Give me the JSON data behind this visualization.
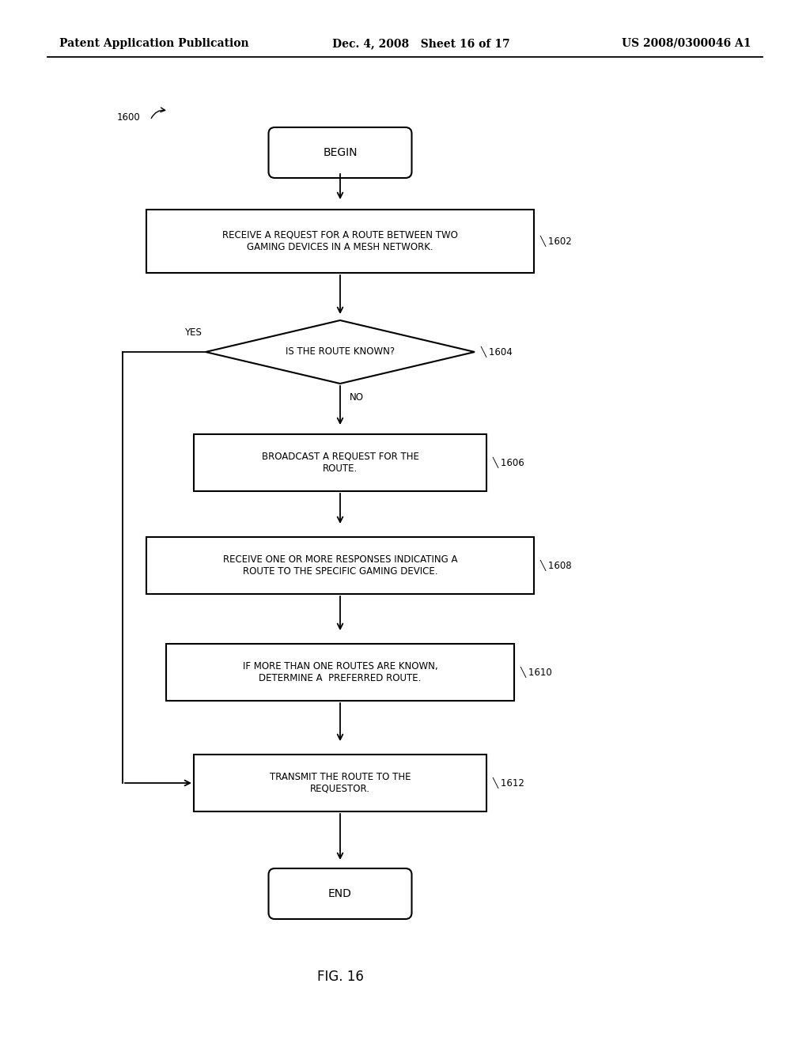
{
  "bg_color": "#ffffff",
  "header_left": "Patent Application Publication",
  "header_mid": "Dec. 4, 2008   Sheet 16 of 17",
  "header_right": "US 2008/0300046 A1",
  "fig_label": "FIG. 16",
  "diagram_label": "1600",
  "begin_label": "BEGIN",
  "end_label": "END",
  "box1602_text": "RECEIVE A REQUEST FOR A ROUTE BETWEEN TWO\nGAMING DEVICES IN A MESH NETWORK.",
  "box1602_ref": "1602",
  "diamond1604_text": "IS THE ROUTE KNOWN?",
  "diamond1604_ref": "1604",
  "yes_label": "YES",
  "no_label": "NO",
  "box1606_text": "BROADCAST A REQUEST FOR THE\nROUTE.",
  "box1606_ref": "1606",
  "box1608_text": "RECEIVE ONE OR MORE RESPONSES INDICATING A\nROUTE TO THE SPECIFIC GAMING DEVICE.",
  "box1608_ref": "1608",
  "box1610_text": "IF MORE THAN ONE ROUTES ARE KNOWN,\nDETERMINE A  PREFERRED ROUTE.",
  "box1610_ref": "1610",
  "box1612_text": "TRANSMIT THE ROUTE TO THE\nREQUESTOR.",
  "box1612_ref": "1612",
  "text_fontsize": 8.5,
  "header_fontsize": 10,
  "label_fontsize": 8.5,
  "fig16_fontsize": 12
}
